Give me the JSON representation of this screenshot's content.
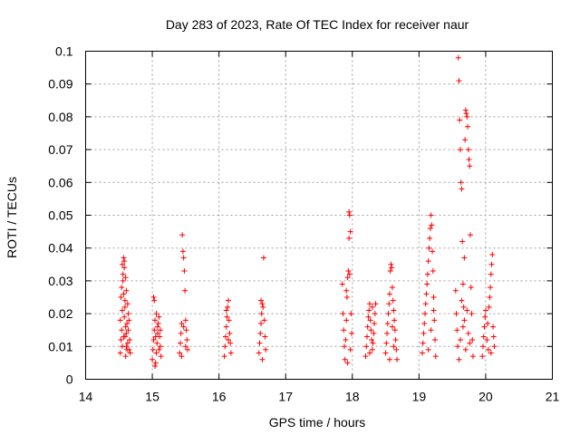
{
  "chart_data": {
    "type": "scatter",
    "title": "Day 283 of 2023, Rate Of TEC Index for receiver naur",
    "xlabel": "GPS time / hours",
    "ylabel": "ROTI / TECUs",
    "xlim": [
      14,
      21
    ],
    "ylim": [
      0,
      0.1
    ],
    "xticks": [
      "14",
      "15",
      "16",
      "17",
      "18",
      "19",
      "20",
      "21"
    ],
    "yticks": [
      "0",
      "0.01",
      "0.02",
      "0.03",
      "0.04",
      "0.05",
      "0.06",
      "0.07",
      "0.08",
      "0.09",
      "0.1"
    ],
    "grid": true,
    "marker": "+",
    "marker_color": "#ff0000",
    "series": [
      {
        "name": "",
        "points": [
          [
            14.52,
            0.008
          ],
          [
            14.53,
            0.012
          ],
          [
            14.54,
            0.015
          ],
          [
            14.52,
            0.018
          ],
          [
            14.55,
            0.021
          ],
          [
            14.53,
            0.025
          ],
          [
            14.54,
            0.028
          ],
          [
            14.56,
            0.032
          ],
          [
            14.55,
            0.035
          ],
          [
            14.57,
            0.037
          ],
          [
            14.58,
            0.034
          ],
          [
            14.56,
            0.03
          ],
          [
            14.57,
            0.026
          ],
          [
            14.59,
            0.022
          ],
          [
            14.58,
            0.019
          ],
          [
            14.6,
            0.016
          ],
          [
            14.59,
            0.013
          ],
          [
            14.61,
            0.01
          ],
          [
            14.6,
            0.007
          ],
          [
            14.62,
            0.009
          ],
          [
            14.63,
            0.011
          ],
          [
            14.61,
            0.014
          ],
          [
            14.62,
            0.017
          ],
          [
            14.64,
            0.02
          ],
          [
            14.63,
            0.023
          ],
          [
            14.65,
            0.018
          ],
          [
            14.64,
            0.015
          ],
          [
            14.66,
            0.012
          ],
          [
            14.65,
            0.009
          ],
          [
            14.67,
            0.008
          ],
          [
            14.58,
            0.036
          ],
          [
            14.6,
            0.031
          ],
          [
            14.55,
            0.01
          ],
          [
            14.57,
            0.013
          ],
          [
            14.59,
            0.024
          ],
          [
            14.61,
            0.027
          ],
          [
            15.0,
            0.006
          ],
          [
            15.01,
            0.009
          ],
          [
            15.02,
            0.012
          ],
          [
            15.03,
            0.015
          ],
          [
            15.04,
            0.018
          ],
          [
            15.02,
            0.025
          ],
          [
            15.03,
            0.024
          ],
          [
            15.05,
            0.005
          ],
          [
            15.06,
            0.008
          ],
          [
            15.07,
            0.011
          ],
          [
            15.08,
            0.014
          ],
          [
            15.09,
            0.017
          ],
          [
            15.1,
            0.019
          ],
          [
            15.11,
            0.013
          ],
          [
            15.12,
            0.01
          ],
          [
            15.13,
            0.007
          ],
          [
            15.04,
            0.004
          ],
          [
            15.06,
            0.02
          ],
          [
            15.08,
            0.016
          ],
          [
            15.1,
            0.009
          ],
          [
            15.12,
            0.015
          ],
          [
            15.05,
            0.013
          ],
          [
            15.41,
            0.008
          ],
          [
            15.42,
            0.011
          ],
          [
            15.43,
            0.014
          ],
          [
            15.44,
            0.017
          ],
          [
            15.45,
            0.044
          ],
          [
            15.46,
            0.039
          ],
          [
            15.47,
            0.037
          ],
          [
            15.48,
            0.033
          ],
          [
            15.49,
            0.027
          ],
          [
            15.5,
            0.018
          ],
          [
            15.51,
            0.015
          ],
          [
            15.52,
            0.012
          ],
          [
            15.53,
            0.009
          ],
          [
            15.44,
            0.007
          ],
          [
            15.47,
            0.016
          ],
          [
            15.5,
            0.01
          ],
          [
            16.08,
            0.007
          ],
          [
            16.09,
            0.01
          ],
          [
            16.1,
            0.013
          ],
          [
            16.11,
            0.016
          ],
          [
            16.12,
            0.019
          ],
          [
            16.13,
            0.022
          ],
          [
            16.14,
            0.024
          ],
          [
            16.15,
            0.018
          ],
          [
            16.16,
            0.014
          ],
          [
            16.17,
            0.011
          ],
          [
            16.18,
            0.008
          ],
          [
            16.11,
            0.021
          ],
          [
            16.14,
            0.012
          ],
          [
            16.6,
            0.008
          ],
          [
            16.61,
            0.011
          ],
          [
            16.62,
            0.014
          ],
          [
            16.63,
            0.017
          ],
          [
            16.64,
            0.02
          ],
          [
            16.65,
            0.023
          ],
          [
            16.66,
            0.022
          ],
          [
            16.67,
            0.037
          ],
          [
            16.68,
            0.018
          ],
          [
            16.69,
            0.013
          ],
          [
            16.7,
            0.009
          ],
          [
            16.65,
            0.006
          ],
          [
            16.63,
            0.024
          ],
          [
            17.85,
            0.029
          ],
          [
            17.86,
            0.02
          ],
          [
            17.87,
            0.015
          ],
          [
            17.88,
            0.01
          ],
          [
            17.89,
            0.006
          ],
          [
            17.9,
            0.012
          ],
          [
            17.91,
            0.018
          ],
          [
            17.92,
            0.025
          ],
          [
            17.93,
            0.031
          ],
          [
            17.94,
            0.033
          ],
          [
            17.95,
            0.051
          ],
          [
            17.96,
            0.05
          ],
          [
            17.97,
            0.045
          ],
          [
            17.95,
            0.043
          ],
          [
            17.96,
            0.032
          ],
          [
            17.98,
            0.02
          ],
          [
            17.99,
            0.014
          ],
          [
            17.97,
            0.009
          ],
          [
            17.93,
            0.005
          ],
          [
            17.91,
            0.027
          ],
          [
            18.2,
            0.007
          ],
          [
            18.21,
            0.01
          ],
          [
            18.22,
            0.013
          ],
          [
            18.23,
            0.016
          ],
          [
            18.24,
            0.019
          ],
          [
            18.25,
            0.021
          ],
          [
            18.26,
            0.023
          ],
          [
            18.27,
            0.018
          ],
          [
            18.28,
            0.015
          ],
          [
            18.29,
            0.012
          ],
          [
            18.3,
            0.009
          ],
          [
            18.31,
            0.011
          ],
          [
            18.32,
            0.014
          ],
          [
            18.33,
            0.017
          ],
          [
            18.34,
            0.02
          ],
          [
            18.35,
            0.023
          ],
          [
            18.26,
            0.008
          ],
          [
            18.3,
            0.022
          ],
          [
            18.5,
            0.008
          ],
          [
            18.51,
            0.011
          ],
          [
            18.52,
            0.014
          ],
          [
            18.53,
            0.017
          ],
          [
            18.54,
            0.02
          ],
          [
            18.55,
            0.023
          ],
          [
            18.56,
            0.026
          ],
          [
            18.57,
            0.033
          ],
          [
            18.58,
            0.035
          ],
          [
            18.59,
            0.034
          ],
          [
            18.6,
            0.028
          ],
          [
            18.61,
            0.024
          ],
          [
            18.62,
            0.021
          ],
          [
            18.63,
            0.018
          ],
          [
            18.64,
            0.015
          ],
          [
            18.65,
            0.012
          ],
          [
            18.66,
            0.009
          ],
          [
            18.67,
            0.006
          ],
          [
            18.56,
            0.006
          ],
          [
            18.6,
            0.016
          ],
          [
            18.62,
            0.01
          ],
          [
            19.05,
            0.008
          ],
          [
            19.06,
            0.011
          ],
          [
            19.07,
            0.014
          ],
          [
            19.08,
            0.017
          ],
          [
            19.09,
            0.02
          ],
          [
            19.1,
            0.023
          ],
          [
            19.11,
            0.026
          ],
          [
            19.12,
            0.029
          ],
          [
            19.13,
            0.032
          ],
          [
            19.14,
            0.036
          ],
          [
            19.15,
            0.04
          ],
          [
            19.16,
            0.043
          ],
          [
            19.17,
            0.046
          ],
          [
            19.18,
            0.05
          ],
          [
            19.19,
            0.047
          ],
          [
            19.2,
            0.039
          ],
          [
            19.21,
            0.033
          ],
          [
            19.22,
            0.025
          ],
          [
            19.23,
            0.018
          ],
          [
            19.24,
            0.012
          ],
          [
            19.25,
            0.007
          ],
          [
            19.14,
            0.009
          ],
          [
            19.18,
            0.015
          ],
          [
            19.22,
            0.021
          ],
          [
            19.55,
            0.027
          ],
          [
            19.56,
            0.02
          ],
          [
            19.57,
            0.015
          ],
          [
            19.58,
            0.01
          ],
          [
            19.59,
            0.098
          ],
          [
            19.6,
            0.091
          ],
          [
            19.61,
            0.079
          ],
          [
            19.62,
            0.07
          ],
          [
            19.63,
            0.06
          ],
          [
            19.64,
            0.058
          ],
          [
            19.65,
            0.042
          ],
          [
            19.66,
            0.029
          ],
          [
            19.67,
            0.022
          ],
          [
            19.68,
            0.018
          ],
          [
            19.69,
            0.073
          ],
          [
            19.7,
            0.082
          ],
          [
            19.71,
            0.081
          ],
          [
            19.72,
            0.08
          ],
          [
            19.73,
            0.077
          ],
          [
            19.74,
            0.07
          ],
          [
            19.75,
            0.067
          ],
          [
            19.76,
            0.065
          ],
          [
            19.77,
            0.044
          ],
          [
            19.78,
            0.028
          ],
          [
            19.79,
            0.02
          ],
          [
            19.8,
            0.012
          ],
          [
            19.81,
            0.007
          ],
          [
            19.62,
            0.012
          ],
          [
            19.66,
            0.016
          ],
          [
            19.7,
            0.009
          ],
          [
            19.74,
            0.014
          ],
          [
            19.68,
            0.037
          ],
          [
            19.64,
            0.024
          ],
          [
            19.72,
            0.021
          ],
          [
            19.76,
            0.011
          ],
          [
            19.6,
            0.006
          ],
          [
            19.95,
            0.007
          ],
          [
            19.96,
            0.01
          ],
          [
            19.97,
            0.013
          ],
          [
            19.98,
            0.016
          ],
          [
            19.99,
            0.019
          ],
          [
            20.0,
            0.021
          ],
          [
            20.02,
            0.012
          ],
          [
            20.04,
            0.009
          ],
          [
            20.05,
            0.022
          ],
          [
            20.06,
            0.025
          ],
          [
            20.07,
            0.028
          ],
          [
            20.08,
            0.032
          ],
          [
            20.09,
            0.035
          ],
          [
            20.1,
            0.038
          ],
          [
            20.11,
            0.016
          ],
          [
            20.12,
            0.013
          ],
          [
            20.13,
            0.01
          ],
          [
            20.03,
            0.017
          ],
          [
            20.08,
            0.008
          ]
        ]
      }
    ]
  }
}
